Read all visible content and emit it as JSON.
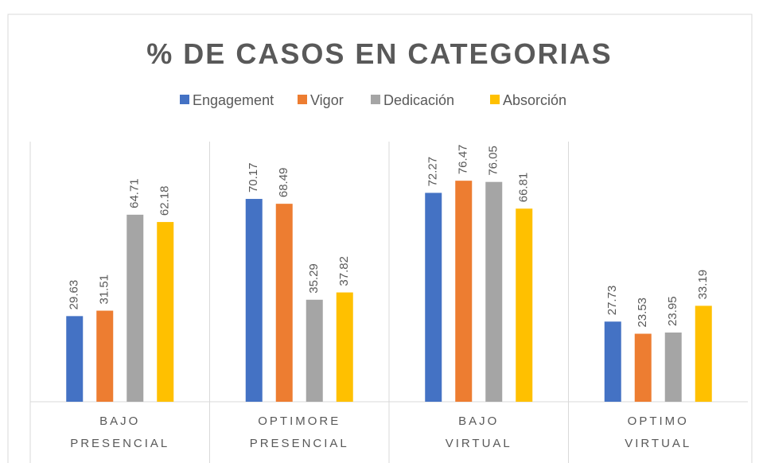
{
  "chart_data": {
    "type": "bar",
    "title": "% DE CASOS EN CATEGORIAS",
    "categories": [
      "BAJO PRESENCIAL",
      "OPTIMORE PRESENCIAL",
      "BAJO VIRTUAL",
      "OPTIMO VIRTUAL"
    ],
    "series": [
      {
        "name": "Engagement",
        "color": "#4472c4",
        "values": [
          29.63,
          70.17,
          72.27,
          27.73
        ]
      },
      {
        "name": "Vigor",
        "color": "#ed7d31",
        "values": [
          31.51,
          68.49,
          76.47,
          23.53
        ]
      },
      {
        "name": "Dedicación",
        "color": "#a5a5a5",
        "values": [
          64.71,
          35.29,
          76.05,
          23.95
        ]
      },
      {
        "name": "Absorción",
        "color": "#ffc000",
        "values": [
          62.18,
          37.82,
          66.81,
          33.19
        ]
      }
    ],
    "ylim": [
      0,
      90
    ],
    "legend": "top"
  }
}
